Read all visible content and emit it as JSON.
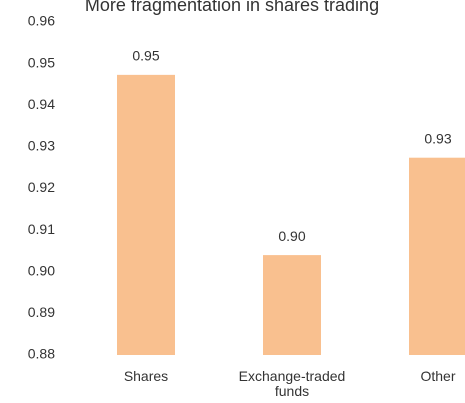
{
  "chart_data": {
    "type": "bar",
    "title": "More fragmentation in shares trading",
    "categories": [
      "Shares",
      "Exchange-traded funds",
      "Other"
    ],
    "values": [
      0.9473,
      0.904,
      0.9274
    ],
    "value_labels": [
      "0.95",
      "0.90",
      "0.93"
    ],
    "color": "#f9c08f",
    "ylim": [
      0.88,
      0.96
    ],
    "yticks": [
      0.88,
      0.89,
      {
        "value": 0.9,
        "label": "0.90"
      },
      0.91,
      0.92,
      0.93,
      0.94,
      0.95,
      0.96
    ],
    "grid": false
  }
}
